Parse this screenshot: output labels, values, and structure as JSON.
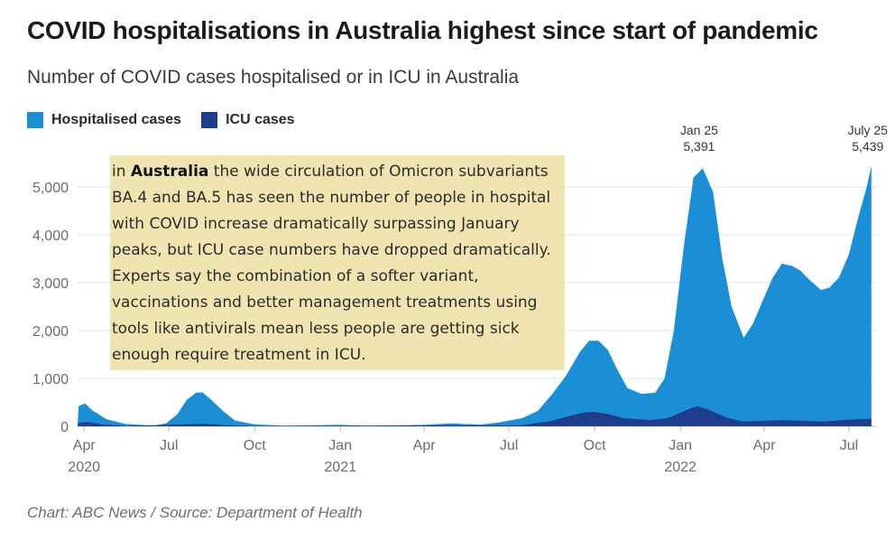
{
  "header": {
    "title": "COVID hospitalisations in Australia highest since start of pandemic",
    "subtitle": "Number of COVID cases hospitalised or in ICU in Australia"
  },
  "legend": {
    "items": [
      {
        "label": "Hospitalised cases",
        "color": "#1a8fd6"
      },
      {
        "label": "ICU cases",
        "color": "#1c3e8c"
      }
    ]
  },
  "annotation": {
    "prefix": "in ",
    "highlight": "Australia",
    "body": " the wide circulation of Omicron subvariants BA.4 and BA.5 has seen the number of people in hospital with COVID increase dramatically surpassing January peaks, but ICU case numbers have dropped dramatically. Experts say the combination of a softer variant, vaccinations and better management treatments using tools like antivirals mean less people are getting sick enough require treatment in ICU."
  },
  "credit": "Chart: ABC News / Source: Department of Health",
  "chart_data": {
    "type": "area",
    "ylim": [
      0,
      5700
    ],
    "yticks": [
      {
        "value": 0,
        "label": "0"
      },
      {
        "value": 1000,
        "label": "1,000"
      },
      {
        "value": 2000,
        "label": "2,000"
      },
      {
        "value": 3000,
        "label": "3,000"
      },
      {
        "value": 4000,
        "label": "4,000"
      },
      {
        "value": 5000,
        "label": "5,000"
      }
    ],
    "xlim": [
      "2020-03-25",
      "2022-07-31"
    ],
    "xticks": [
      {
        "date": "2020-04-01",
        "label": "Apr",
        "year": "2020"
      },
      {
        "date": "2020-07-01",
        "label": "Jul",
        "year": ""
      },
      {
        "date": "2020-10-01",
        "label": "Oct",
        "year": ""
      },
      {
        "date": "2021-01-01",
        "label": "Jan",
        "year": "2021"
      },
      {
        "date": "2021-04-01",
        "label": "Apr",
        "year": ""
      },
      {
        "date": "2021-07-01",
        "label": "Jul",
        "year": ""
      },
      {
        "date": "2021-10-01",
        "label": "Oct",
        "year": ""
      },
      {
        "date": "2022-01-01",
        "label": "Jan",
        "year": "2022"
      },
      {
        "date": "2022-04-01",
        "label": "Apr",
        "year": ""
      },
      {
        "date": "2022-07-01",
        "label": "Jul",
        "year": ""
      }
    ],
    "series": [
      {
        "name": "Hospitalised cases",
        "color": "#1a8fd6",
        "points": [
          [
            "2020-03-25",
            0
          ],
          [
            "2020-03-26",
            420
          ],
          [
            "2020-04-02",
            480
          ],
          [
            "2020-04-10",
            330
          ],
          [
            "2020-04-25",
            150
          ],
          [
            "2020-05-15",
            50
          ],
          [
            "2020-06-15",
            15
          ],
          [
            "2020-06-28",
            60
          ],
          [
            "2020-07-10",
            250
          ],
          [
            "2020-07-20",
            550
          ],
          [
            "2020-07-30",
            700
          ],
          [
            "2020-08-06",
            710
          ],
          [
            "2020-08-15",
            560
          ],
          [
            "2020-08-28",
            320
          ],
          [
            "2020-09-10",
            120
          ],
          [
            "2020-10-01",
            40
          ],
          [
            "2020-11-01",
            15
          ],
          [
            "2021-01-01",
            30
          ],
          [
            "2021-02-01",
            12
          ],
          [
            "2021-04-01",
            30
          ],
          [
            "2021-05-01",
            60
          ],
          [
            "2021-06-01",
            35
          ],
          [
            "2021-06-20",
            80
          ],
          [
            "2021-07-15",
            170
          ],
          [
            "2021-08-01",
            320
          ],
          [
            "2021-08-15",
            640
          ],
          [
            "2021-08-31",
            1050
          ],
          [
            "2021-09-15",
            1550
          ],
          [
            "2021-09-25",
            1790
          ],
          [
            "2021-10-05",
            1790
          ],
          [
            "2021-10-15",
            1600
          ],
          [
            "2021-10-25",
            1200
          ],
          [
            "2021-11-05",
            800
          ],
          [
            "2021-11-20",
            680
          ],
          [
            "2021-12-05",
            700
          ],
          [
            "2021-12-15",
            1000
          ],
          [
            "2021-12-25",
            2000
          ],
          [
            "2022-01-05",
            3800
          ],
          [
            "2022-01-15",
            5200
          ],
          [
            "2022-01-25",
            5391
          ],
          [
            "2022-02-05",
            4900
          ],
          [
            "2022-02-15",
            3500
          ],
          [
            "2022-02-25",
            2500
          ],
          [
            "2022-03-10",
            1850
          ],
          [
            "2022-03-20",
            2150
          ],
          [
            "2022-04-01",
            2700
          ],
          [
            "2022-04-10",
            3100
          ],
          [
            "2022-04-20",
            3400
          ],
          [
            "2022-05-01",
            3350
          ],
          [
            "2022-05-10",
            3250
          ],
          [
            "2022-05-20",
            3050
          ],
          [
            "2022-06-01",
            2850
          ],
          [
            "2022-06-10",
            2900
          ],
          [
            "2022-06-20",
            3100
          ],
          [
            "2022-07-01",
            3600
          ],
          [
            "2022-07-10",
            4300
          ],
          [
            "2022-07-20",
            5000
          ],
          [
            "2022-07-25",
            5439
          ],
          [
            "2022-07-25",
            0
          ]
        ]
      },
      {
        "name": "ICU cases",
        "color": "#1c3e8c",
        "points": [
          [
            "2020-03-25",
            0
          ],
          [
            "2020-03-26",
            70
          ],
          [
            "2020-04-05",
            90
          ],
          [
            "2020-04-20",
            40
          ],
          [
            "2020-05-15",
            10
          ],
          [
            "2020-07-20",
            40
          ],
          [
            "2020-08-06",
            55
          ],
          [
            "2020-09-01",
            25
          ],
          [
            "2020-10-01",
            5
          ],
          [
            "2021-07-15",
            25
          ],
          [
            "2021-08-15",
            110
          ],
          [
            "2021-09-01",
            200
          ],
          [
            "2021-09-20",
            290
          ],
          [
            "2021-10-01",
            300
          ],
          [
            "2021-10-15",
            260
          ],
          [
            "2021-11-01",
            170
          ],
          [
            "2021-12-01",
            130
          ],
          [
            "2021-12-20",
            180
          ],
          [
            "2022-01-10",
            360
          ],
          [
            "2022-01-20",
            420
          ],
          [
            "2022-02-01",
            340
          ],
          [
            "2022-02-20",
            180
          ],
          [
            "2022-03-10",
            100
          ],
          [
            "2022-04-20",
            130
          ],
          [
            "2022-06-01",
            100
          ],
          [
            "2022-07-10",
            150
          ],
          [
            "2022-07-25",
            160
          ],
          [
            "2022-07-25",
            0
          ]
        ]
      }
    ],
    "annotations": [
      {
        "date": "2022-01-25",
        "label": "Jan 25",
        "value_label": "5,391"
      },
      {
        "date": "2022-07-25",
        "label": "July 25",
        "value_label": "5,439"
      }
    ]
  }
}
